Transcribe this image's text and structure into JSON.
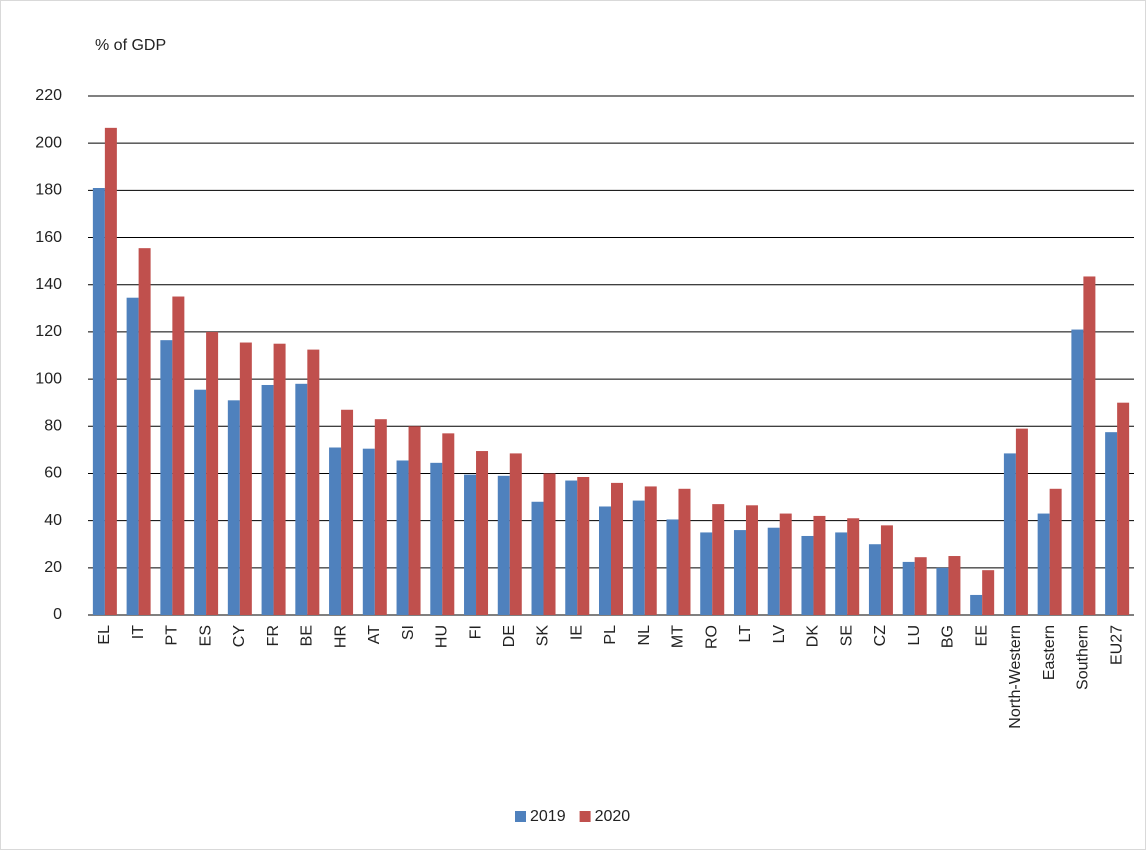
{
  "chart_data": {
    "type": "bar",
    "y_axis_title": "% of GDP",
    "categories": [
      "EL",
      "IT",
      "PT",
      "ES",
      "CY",
      "FR",
      "BE",
      "HR",
      "AT",
      "SI",
      "HU",
      "FI",
      "DE",
      "SK",
      "IE",
      "PL",
      "NL",
      "MT",
      "RO",
      "LT",
      "LV",
      "DK",
      "SE",
      "CZ",
      "LU",
      "BG",
      "EE",
      "North-Western",
      "Eastern",
      "Southern",
      "EU27"
    ],
    "series": [
      {
        "name": "2019",
        "color": "#4f81bd",
        "values": [
          181,
          134.5,
          116.5,
          95.5,
          91,
          97.5,
          98,
          71,
          70.5,
          65.5,
          64.5,
          59.5,
          59,
          48,
          57,
          46,
          48.5,
          40.5,
          35,
          36,
          37,
          33.5,
          35,
          30,
          22.5,
          20,
          8.5,
          68.5,
          43,
          121,
          77.5
        ]
      },
      {
        "name": "2020",
        "color": "#c0504d",
        "values": [
          206.5,
          155.5,
          135,
          120,
          115.5,
          115,
          112.5,
          87,
          83,
          80,
          77,
          69.5,
          68.5,
          60,
          58.5,
          56,
          54.5,
          53.5,
          47,
          46.5,
          43,
          42,
          41,
          38,
          24.5,
          25,
          19,
          79,
          53.5,
          143.5,
          90
        ]
      }
    ],
    "ylim": [
      0,
      220
    ],
    "yticks": [
      0,
      20,
      40,
      60,
      80,
      100,
      120,
      140,
      160,
      180,
      200,
      220
    ],
    "grid": true
  }
}
